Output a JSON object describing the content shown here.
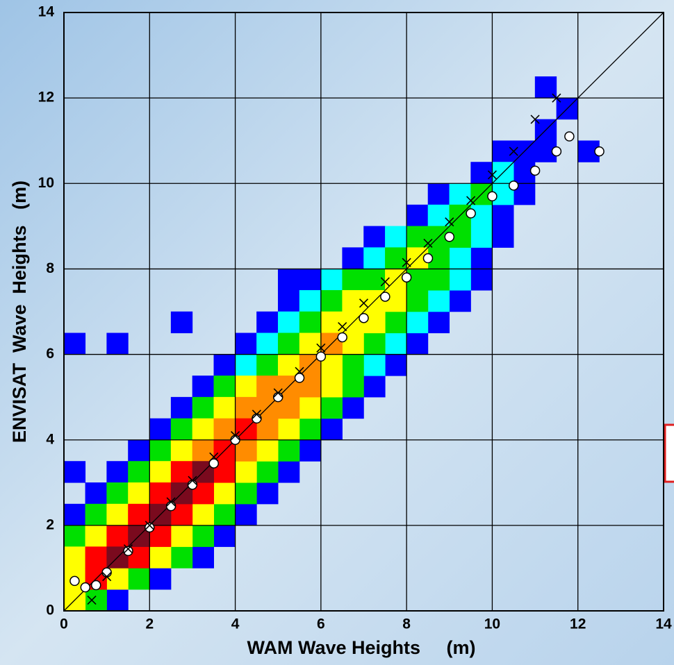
{
  "chart_data": {
    "type": "scatter",
    "xlabel": "WAM Wave Heights     (m)",
    "ylabel": "ENVISAT  Wave  Heights   (m)",
    "xlim": [
      0,
      14
    ],
    "ylim": [
      0,
      14
    ],
    "xticks": [
      0,
      2,
      4,
      6,
      8,
      10,
      12,
      14
    ],
    "yticks": [
      0,
      2,
      4,
      6,
      8,
      10,
      12,
      14
    ],
    "grid": true,
    "series": [
      {
        "color": "#0000ff",
        "marker": "square",
        "x": [
          1.25,
          2.25,
          3.25,
          3.75,
          0.25,
          4.25,
          0.75,
          4.75,
          1.25,
          5.25,
          1.75,
          5.75,
          2.25,
          6.25,
          2.75,
          6.75,
          3.25,
          7.25,
          3.75,
          7.75,
          4.25,
          8.25,
          4.75,
          8.75,
          5.25,
          9.25,
          5.75,
          9.75,
          6.75,
          9.75,
          7.25,
          10.25,
          8.25,
          10.25,
          8.75,
          10.75,
          9.75,
          10.75,
          10.25,
          10.75,
          11.25,
          11.25,
          11.75,
          11.25,
          0.25,
          1.25,
          2.75,
          5.25,
          12.25,
          0.25
        ],
        "y": [
          0.25,
          0.75,
          1.25,
          1.75,
          2.25,
          2.25,
          2.75,
          2.75,
          3.25,
          3.25,
          3.75,
          3.75,
          4.25,
          4.25,
          4.75,
          4.75,
          5.25,
          5.25,
          5.75,
          5.75,
          6.25,
          6.25,
          6.75,
          6.75,
          7.25,
          7.25,
          7.75,
          7.75,
          8.25,
          8.25,
          8.75,
          8.75,
          9.25,
          9.25,
          9.75,
          9.75,
          10.25,
          10.25,
          10.75,
          10.75,
          10.75,
          11.25,
          11.75,
          12.25,
          6.25,
          6.25,
          6.75,
          7.75,
          10.75,
          3.25
        ]
      },
      {
        "color": "#00ffff",
        "marker": "square",
        "x": [
          4.25,
          7.25,
          4.75,
          7.75,
          5.25,
          8.25,
          5.75,
          8.75,
          6.25,
          9.25,
          7.25,
          9.25,
          7.75,
          9.75,
          8.75,
          9.75,
          9.25,
          10.25,
          10.25
        ],
        "y": [
          5.75,
          5.75,
          6.25,
          6.25,
          6.75,
          6.75,
          7.25,
          7.25,
          7.75,
          7.75,
          8.25,
          8.25,
          8.75,
          8.75,
          9.25,
          9.25,
          9.75,
          9.75,
          10.25
        ]
      },
      {
        "color": "#00e000",
        "marker": "square",
        "x": [
          0.75,
          1.75,
          2.75,
          0.25,
          3.25,
          0.75,
          3.75,
          1.25,
          4.25,
          1.75,
          4.75,
          2.25,
          5.25,
          2.75,
          5.75,
          3.25,
          6.25,
          3.75,
          6.75,
          4.75,
          6.75,
          5.25,
          7.25,
          5.75,
          7.75,
          6.25,
          8.25,
          7.25,
          8.25,
          6.75,
          8.75,
          7.75,
          8.75,
          8.75,
          8.25,
          9.25,
          9.25,
          9.75
        ],
        "y": [
          0.25,
          0.75,
          1.25,
          1.75,
          1.75,
          2.25,
          2.25,
          2.75,
          2.75,
          3.25,
          3.25,
          3.75,
          3.75,
          4.25,
          4.25,
          4.75,
          4.75,
          5.25,
          5.25,
          5.75,
          5.75,
          6.25,
          6.25,
          6.75,
          6.75,
          7.25,
          7.25,
          7.75,
          7.75,
          7.75,
          7.75,
          8.25,
          8.25,
          8.75,
          8.75,
          8.75,
          9.25,
          9.75
        ]
      },
      {
        "color": "#ffff00",
        "marker": "square",
        "x": [
          0.25,
          0.25,
          1.25,
          0.25,
          2.25,
          0.75,
          2.75,
          1.25,
          3.25,
          1.75,
          3.75,
          2.25,
          4.25,
          2.75,
          4.75,
          3.25,
          5.25,
          3.75,
          5.75,
          4.25,
          6.25,
          5.25,
          6.25,
          5.75,
          6.75,
          6.75,
          6.25,
          7.25,
          7.25,
          6.75,
          7.75,
          7.75,
          8.25
        ],
        "y": [
          0.25,
          0.75,
          0.75,
          1.25,
          1.25,
          1.75,
          1.75,
          2.25,
          2.25,
          2.75,
          2.75,
          3.25,
          3.25,
          3.75,
          3.75,
          4.25,
          4.25,
          4.75,
          4.75,
          5.25,
          5.25,
          5.75,
          5.75,
          6.25,
          6.25,
          6.75,
          6.75,
          6.75,
          7.25,
          7.25,
          7.25,
          7.75,
          8.25
        ]
      },
      {
        "color": "#ff8c00",
        "marker": "square",
        "x": [
          3.25,
          4.25,
          3.75,
          4.75,
          4.75,
          4.25,
          5.25,
          5.25,
          4.75,
          5.75,
          5.75,
          6.25
        ],
        "y": [
          3.75,
          3.75,
          4.25,
          4.25,
          4.75,
          4.75,
          4.75,
          5.25,
          5.25,
          5.25,
          5.75,
          6.25
        ]
      },
      {
        "color": "#ff0000",
        "marker": "square",
        "x": [
          0.75,
          0.75,
          1.75,
          1.25,
          2.25,
          1.75,
          2.75,
          2.25,
          3.25,
          2.75,
          3.75,
          3.75,
          4.25
        ],
        "y": [
          0.75,
          1.25,
          1.25,
          1.75,
          1.75,
          2.25,
          2.25,
          2.75,
          2.75,
          3.25,
          3.25,
          3.75,
          4.25
        ]
      },
      {
        "color": "#7a0a1e",
        "marker": "square",
        "x": [
          1.25,
          1.75,
          2.25,
          2.75,
          3.25
        ],
        "y": [
          1.25,
          1.75,
          2.25,
          2.75,
          3.25
        ]
      },
      {
        "color": "#000000",
        "marker": "circle",
        "x": [
          0.25,
          0.5,
          0.75,
          1,
          1.5,
          2,
          2.5,
          3,
          3.5,
          4,
          4.5,
          5,
          5.5,
          6,
          6.5,
          7,
          7.5,
          8,
          8.5,
          9,
          9.5,
          10,
          10.5,
          11,
          11.5,
          11.8,
          12.5
        ],
        "y": [
          0.7,
          0.55,
          0.6,
          0.9,
          1.4,
          1.95,
          2.45,
          2.95,
          3.45,
          4.0,
          4.5,
          5.0,
          5.45,
          5.95,
          6.4,
          6.85,
          7.35,
          7.8,
          8.25,
          8.75,
          9.3,
          9.7,
          9.95,
          10.3,
          10.75,
          11.1,
          10.75
        ]
      },
      {
        "color": "#000000",
        "marker": "x",
        "x": [
          0.65,
          1,
          1.5,
          2,
          2.5,
          3,
          3.5,
          4,
          4.5,
          5,
          5.5,
          6,
          6.5,
          7,
          7.5,
          8,
          8.5,
          9,
          9.5,
          10,
          10.5,
          11,
          11.5
        ],
        "y": [
          0.25,
          0.8,
          1.45,
          2.0,
          2.55,
          3.05,
          3.6,
          4.1,
          4.6,
          5.1,
          5.6,
          6.15,
          6.65,
          7.2,
          7.7,
          8.15,
          8.6,
          9.1,
          9.6,
          10.2,
          10.75,
          11.5,
          12.0
        ]
      }
    ]
  }
}
